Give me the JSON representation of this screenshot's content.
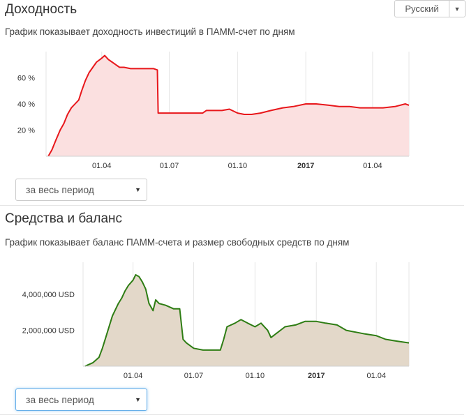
{
  "language_button": {
    "label": "Русский"
  },
  "profitability": {
    "title": "Доходность",
    "description": "График показывает доходность инвестиций в ПАММ-счет по дням",
    "period_select": "за весь период"
  },
  "funds": {
    "title": "Средства и баланс",
    "description": "График показывает баланс ПАММ-счета и размер свободных средств по дням",
    "period_select": "за весь период"
  },
  "colors": {
    "profit_line": "#e8171b",
    "profit_fill": "#fbe0e0",
    "funds_line": "#2e7d14",
    "funds_fill": "#e3d8c9",
    "focus_border": "#66afe9"
  },
  "chart_data": [
    {
      "type": "area",
      "title": "",
      "x": [
        "2016-01-20",
        "2016-01-25",
        "2016-01-30",
        "2016-02-05",
        "2016-02-10",
        "2016-02-15",
        "2016-02-20",
        "2016-02-25",
        "2016-03-01",
        "2016-03-05",
        "2016-03-10",
        "2016-03-15",
        "2016-03-20",
        "2016-03-25",
        "2016-04-01",
        "2016-04-05",
        "2016-04-10",
        "2016-04-15",
        "2016-04-20",
        "2016-04-25",
        "2016-05-01",
        "2016-05-10",
        "2016-05-20",
        "2016-06-01",
        "2016-06-10",
        "2016-06-15",
        "2016-06-16",
        "2016-07-01",
        "2016-07-15",
        "2016-08-01",
        "2016-08-15",
        "2016-08-20",
        "2016-09-01",
        "2016-09-10",
        "2016-09-20",
        "2016-10-01",
        "2016-10-10",
        "2016-10-20",
        "2016-11-01",
        "2016-11-15",
        "2016-12-01",
        "2016-12-15",
        "2017-01-01",
        "2017-01-15",
        "2017-02-01",
        "2017-02-15",
        "2017-03-01",
        "2017-03-15",
        "2017-04-01",
        "2017-04-15",
        "2017-05-01",
        "2017-05-15",
        "2017-05-20"
      ],
      "y": [
        0,
        5,
        12,
        20,
        25,
        32,
        37,
        40,
        43,
        50,
        58,
        64,
        68,
        72,
        75,
        77,
        74,
        72,
        70,
        68,
        68,
        67,
        67,
        67,
        67,
        66,
        33,
        33,
        33,
        33,
        33,
        35,
        35,
        35,
        36,
        33,
        32,
        32,
        33,
        35,
        37,
        38,
        40,
        40,
        39,
        38,
        38,
        37,
        37,
        37,
        38,
        40,
        39
      ],
      "x_tick_labels": [
        "01.04",
        "01.07",
        "01.10",
        "2017",
        "01.04"
      ],
      "y_tick_labels": [
        "20 %",
        "40 %",
        "60 %"
      ],
      "ylim": [
        0,
        80
      ],
      "grid": "vertical"
    },
    {
      "type": "area",
      "title": "",
      "x": [
        "2016-01-20",
        "2016-02-01",
        "2016-02-10",
        "2016-02-15",
        "2016-02-20",
        "2016-03-01",
        "2016-03-10",
        "2016-03-15",
        "2016-03-20",
        "2016-03-25",
        "2016-04-01",
        "2016-04-05",
        "2016-04-10",
        "2016-04-15",
        "2016-04-20",
        "2016-04-25",
        "2016-05-01",
        "2016-05-05",
        "2016-05-10",
        "2016-05-20",
        "2016-06-01",
        "2016-06-10",
        "2016-06-15",
        "2016-06-20",
        "2016-07-01",
        "2016-07-15",
        "2016-08-01",
        "2016-08-10",
        "2016-08-15",
        "2016-08-20",
        "2016-09-01",
        "2016-09-10",
        "2016-09-20",
        "2016-10-01",
        "2016-10-10",
        "2016-10-20",
        "2016-10-25",
        "2016-11-01",
        "2016-11-15",
        "2016-12-01",
        "2016-12-15",
        "2017-01-01",
        "2017-01-15",
        "2017-02-01",
        "2017-02-15",
        "2017-03-01",
        "2017-03-15",
        "2017-04-01",
        "2017-04-15",
        "2017-05-01",
        "2017-05-20"
      ],
      "y": [
        0,
        200000,
        500000,
        1000000,
        1600000,
        2800000,
        3500000,
        3800000,
        4200000,
        4500000,
        4800000,
        5100000,
        5000000,
        4700000,
        4300000,
        3500000,
        3100000,
        3700000,
        3500000,
        3400000,
        3200000,
        3200000,
        1500000,
        1300000,
        1000000,
        900000,
        900000,
        900000,
        1500000,
        2200000,
        2400000,
        2600000,
        2400000,
        2200000,
        2400000,
        2000000,
        1600000,
        1800000,
        2200000,
        2300000,
        2500000,
        2500000,
        2400000,
        2300000,
        2000000,
        1900000,
        1800000,
        1700000,
        1500000,
        1400000,
        1300000
      ],
      "x_tick_labels": [
        "01.04",
        "01.07",
        "01.10",
        "2017",
        "01.04"
      ],
      "y_tick_labels": [
        "2,000,000 USD",
        "4,000,000 USD"
      ],
      "ylim": [
        0,
        5800000
      ],
      "grid": "vertical"
    }
  ]
}
